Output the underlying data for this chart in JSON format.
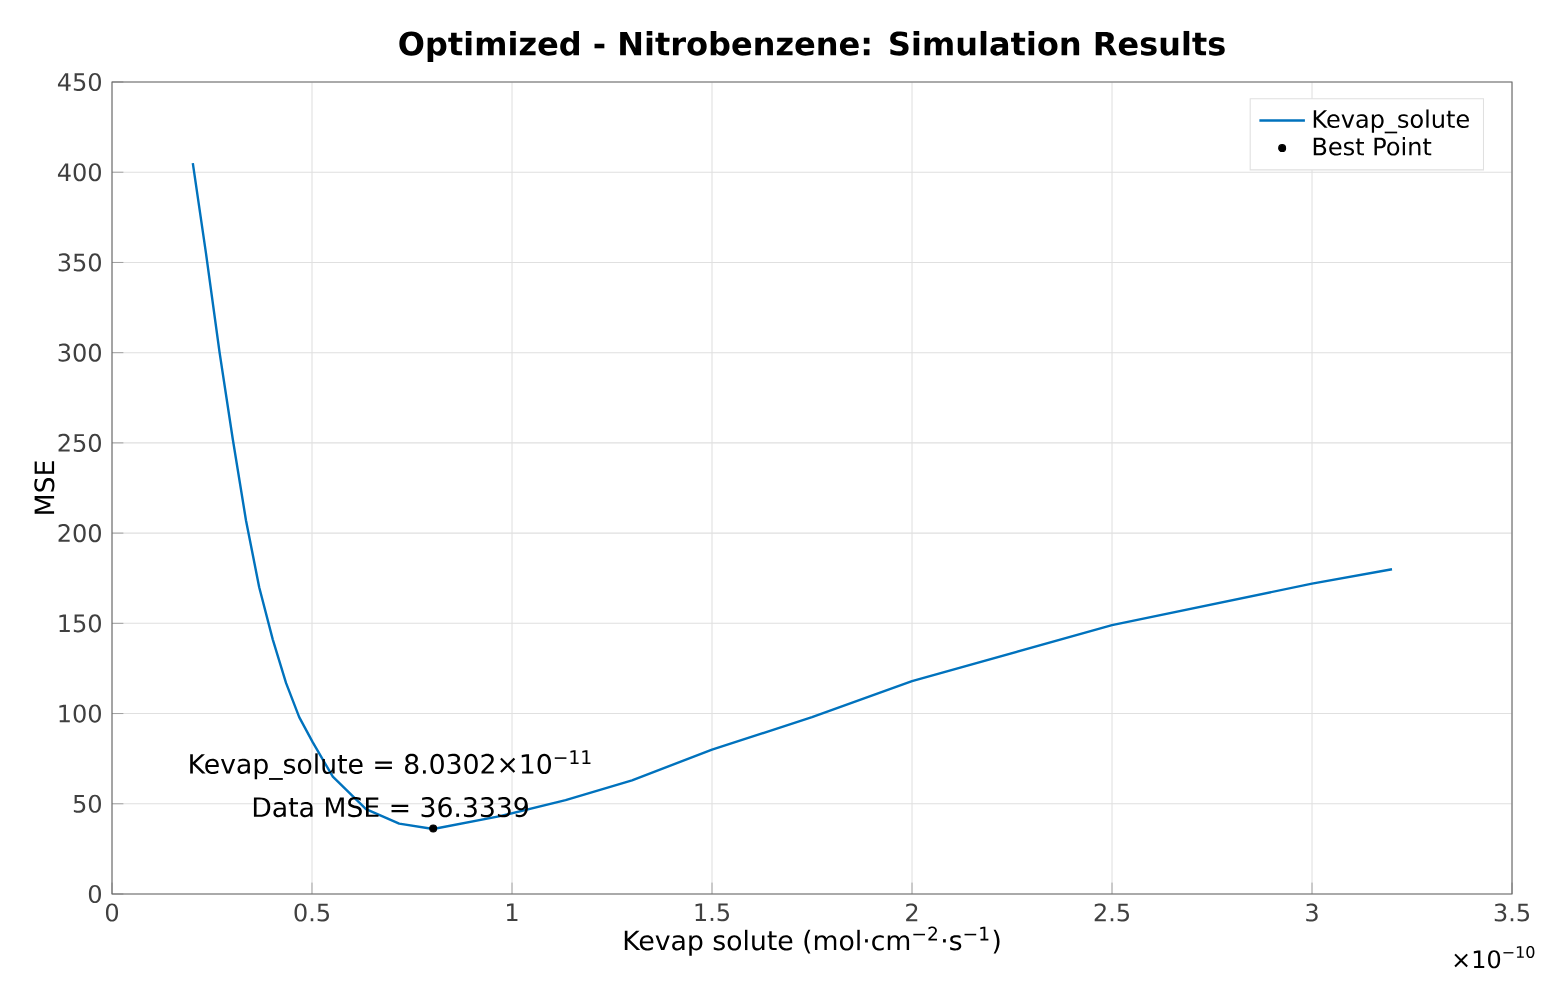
{
  "chart_data": {
    "type": "line",
    "title": "Optimized - Nitrobenzene: Simulation Results",
    "xlabel": "Kevap solute (mol·cm$^{−2}$·s$^{−1}$)",
    "ylabel": "MSE",
    "xlim": [
      0,
      3.5
    ],
    "ylim": [
      0,
      450
    ],
    "xticks": [
      0,
      0.5,
      1,
      1.5,
      2,
      2.5,
      3,
      3.5
    ],
    "yticks": [
      0,
      50,
      100,
      150,
      200,
      250,
      300,
      350,
      400,
      450
    ],
    "grid": true,
    "legend": "top right",
    "series": [
      {
        "name": "Kevap_solute",
        "color": "#0072bd",
        "marker": "none",
        "x": [
          0.202,
          0.235,
          0.269,
          0.302,
          0.335,
          0.368,
          0.402,
          0.435,
          0.468,
          0.502,
          0.552,
          0.635,
          0.718,
          0.80302,
          0.967,
          1.134,
          1.3,
          1.5,
          1.75,
          2.0,
          2.5,
          3.0,
          3.2
        ],
        "values": [
          405,
          355,
          300,
          252,
          207,
          170,
          141,
          117,
          98,
          84,
          65,
          47,
          39,
          36,
          43,
          52,
          63,
          80,
          98,
          118,
          149,
          172,
          180
        ]
      },
      {
        "name": "Best Point",
        "type": "scatter",
        "color": "#000000",
        "marker": "circle",
        "x": [
          0.80302
        ],
        "values": [
          36.3339
        ]
      }
    ],
    "annotations": [
      {
        "text": "Kevap_solute = 8.0302×10$^{−11}$",
        "x": 0.80302,
        "y": 36.3339
      },
      {
        "text": "Data MSE = 36.3339",
        "x": 0.80302,
        "y": 36.3339
      },
      "×10$^{−10}$"
    ]
  }
}
